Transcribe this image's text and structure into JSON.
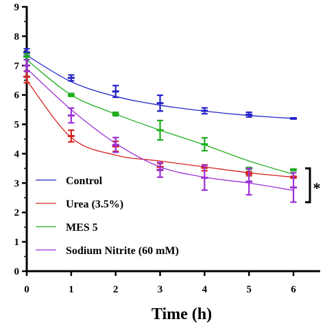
{
  "chart_data": {
    "type": "line",
    "xlabel": "Time (h)",
    "ylabel": "",
    "xlim": [
      0,
      6.6
    ],
    "ylim": [
      0,
      9
    ],
    "xticks": [
      0,
      1,
      2,
      3,
      4,
      5,
      6
    ],
    "yticks": [
      0,
      1,
      2,
      3,
      4,
      5,
      6,
      7,
      8,
      9
    ],
    "legend_position": "bottom-left",
    "grid": false,
    "significance_label": "*",
    "series": [
      {
        "name": "Control",
        "color": "#2424c8",
        "x": [
          0,
          1,
          2,
          3,
          4,
          5,
          6
        ],
        "y": [
          7.45,
          6.58,
          6.12,
          5.72,
          5.46,
          5.33,
          5.2
        ],
        "err": [
          0.12,
          0.1,
          0.2,
          0.27,
          0.1,
          0.08,
          0.02
        ],
        "curve": [
          7.35,
          6.45,
          5.95,
          5.65,
          5.45,
          5.3,
          5.2
        ]
      },
      {
        "name": "Urea (3.5%)",
        "color": "#d42020",
        "x": [
          0,
          1,
          2,
          3,
          4,
          5,
          6
        ],
        "y": [
          6.62,
          4.6,
          4.25,
          3.55,
          3.52,
          3.32,
          3.2
        ],
        "err": [
          0.2,
          0.2,
          0.17,
          0.12,
          0.1,
          0.07,
          0.03
        ],
        "curve": [
          6.5,
          4.55,
          3.95,
          3.75,
          3.55,
          3.35,
          3.2
        ]
      },
      {
        "name": "MES 5",
        "color": "#1fae1f",
        "x": [
          0,
          1,
          2,
          3,
          4,
          5,
          6
        ],
        "y": [
          7.3,
          6.0,
          5.35,
          4.8,
          4.32,
          3.5,
          3.45
        ],
        "err": [
          0.1,
          0.05,
          0.06,
          0.33,
          0.22,
          0.03,
          0.03
        ],
        "curve": [
          7.2,
          6.0,
          5.35,
          4.8,
          4.3,
          3.75,
          3.3
        ]
      },
      {
        "name": "Sodium Nitrite (60 mM)",
        "color": "#9b30d6",
        "x": [
          0,
          1,
          2,
          3,
          4,
          5,
          6
        ],
        "y": [
          7.0,
          5.3,
          4.3,
          3.45,
          3.18,
          3.05,
          2.85
        ],
        "err": [
          0.2,
          0.25,
          0.25,
          0.25,
          0.42,
          0.45,
          0.5
        ],
        "curve": [
          6.9,
          5.5,
          4.35,
          3.55,
          3.2,
          3.0,
          2.75
        ]
      }
    ]
  }
}
